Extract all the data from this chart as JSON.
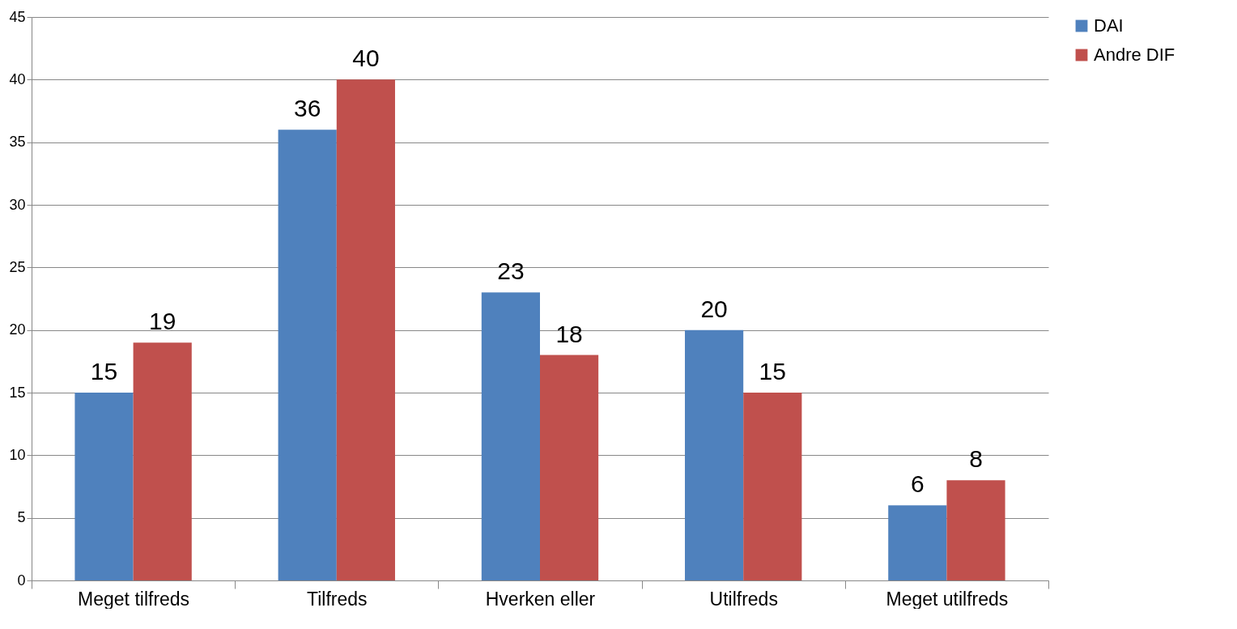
{
  "chart_data": {
    "type": "bar",
    "categories": [
      "Meget tilfreds",
      "Tilfreds",
      "Hverken eller",
      "Utilfreds",
      "Meget utilfreds"
    ],
    "series": [
      {
        "name": "DAI",
        "color": "#4f81bd",
        "values": [
          15,
          36,
          23,
          20,
          6
        ]
      },
      {
        "name": "Andre DIF",
        "color": "#c0504d",
        "values": [
          19,
          40,
          18,
          15,
          8
        ]
      }
    ],
    "ylim": [
      0,
      45
    ],
    "yticks": [
      0,
      5,
      10,
      15,
      20,
      25,
      30,
      35,
      40,
      45
    ],
    "grid": "y",
    "legend": "right",
    "data_labels": true
  }
}
